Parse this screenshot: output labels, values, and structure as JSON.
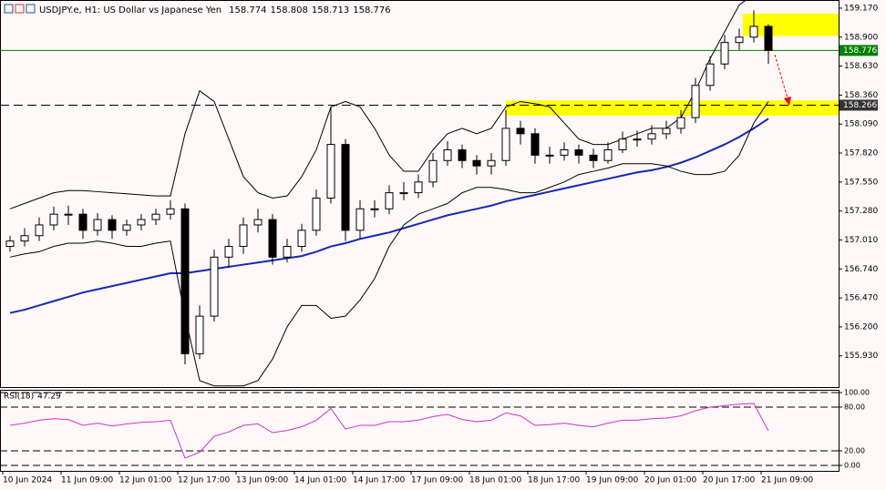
{
  "chart_data": [
    {
      "type": "candlestick",
      "title": "USDJPY.e, H1:  US Dollar vs Japanese Yen",
      "quote": [
        158.774,
        158.808,
        158.713,
        158.776
      ],
      "categories": [
        "10 Jun 2024",
        null,
        null,
        null,
        "11 Jun 09:00",
        null,
        null,
        null,
        "12 Jun 01:00",
        null,
        null,
        null,
        "12 Jun 17:00",
        null,
        null,
        null,
        "13 Jun 09:00",
        null,
        null,
        null,
        "14 Jun 01:00",
        null,
        null,
        null,
        "14 Jun 17:00",
        null,
        null,
        null,
        "17 Jun 09:00",
        null,
        null,
        null,
        "18 Jun 01:00",
        null,
        null,
        null,
        "18 Jun 17:00",
        null,
        null,
        null,
        "19 Jun 09:00",
        null,
        null,
        null,
        "20 Jun 01:00",
        null,
        null,
        null,
        "20 Jun 17:00",
        null,
        null,
        null,
        "21 Jun 09:00"
      ],
      "open": [
        156.95,
        157.0,
        157.05,
        157.15,
        157.25,
        157.25,
        157.1,
        157.2,
        157.1,
        157.15,
        157.2,
        157.25,
        157.3,
        155.95,
        156.3,
        156.85,
        156.95,
        157.15,
        157.2,
        156.85,
        156.95,
        157.1,
        157.4,
        157.9,
        157.1,
        157.3,
        157.3,
        157.45,
        157.45,
        157.55,
        157.75,
        157.85,
        157.75,
        157.7,
        157.75,
        158.05,
        158.0,
        157.8,
        157.8,
        157.85,
        157.8,
        157.75,
        157.85,
        157.95,
        157.95,
        158.0,
        158.05,
        158.15,
        158.45,
        158.65,
        158.85,
        158.9,
        159.0
      ],
      "high": [
        157.05,
        157.12,
        157.22,
        157.32,
        157.33,
        157.3,
        157.26,
        157.24,
        157.2,
        157.25,
        157.3,
        157.38,
        157.35,
        156.4,
        156.92,
        157.02,
        157.22,
        157.3,
        157.25,
        157.02,
        157.16,
        157.48,
        158.25,
        157.95,
        157.38,
        157.38,
        157.52,
        157.55,
        157.62,
        157.82,
        157.93,
        157.9,
        157.8,
        157.82,
        158.22,
        158.12,
        158.05,
        157.88,
        157.92,
        157.9,
        157.86,
        157.92,
        158.02,
        158.03,
        158.08,
        158.12,
        158.22,
        158.52,
        158.72,
        158.92,
        158.98,
        159.15,
        159.02
      ],
      "low": [
        156.9,
        156.95,
        157.0,
        157.1,
        157.15,
        157.02,
        157.05,
        157.02,
        157.05,
        157.1,
        157.15,
        157.2,
        155.85,
        155.9,
        156.25,
        156.75,
        156.88,
        157.08,
        156.78,
        156.8,
        156.9,
        157.05,
        157.35,
        157.0,
        157.02,
        157.22,
        157.25,
        157.38,
        157.4,
        157.5,
        157.7,
        157.68,
        157.62,
        157.62,
        157.7,
        157.9,
        157.72,
        157.72,
        157.75,
        157.72,
        157.68,
        157.72,
        157.82,
        157.88,
        157.9,
        157.95,
        158.0,
        158.1,
        158.4,
        158.6,
        158.78,
        158.85,
        158.65
      ],
      "close": [
        157.0,
        157.05,
        157.15,
        157.25,
        157.25,
        157.1,
        157.2,
        157.1,
        157.15,
        157.2,
        157.25,
        157.3,
        155.95,
        156.3,
        156.85,
        156.95,
        157.15,
        157.2,
        156.85,
        156.95,
        157.1,
        157.4,
        157.9,
        157.1,
        157.3,
        157.3,
        157.45,
        157.45,
        157.55,
        157.75,
        157.85,
        157.75,
        157.7,
        157.75,
        158.05,
        158.0,
        157.8,
        157.8,
        157.85,
        157.8,
        157.75,
        157.85,
        157.95,
        157.95,
        158.0,
        158.05,
        158.15,
        158.45,
        158.65,
        158.85,
        158.9,
        159.0,
        158.776
      ],
      "series": [
        {
          "color": "#1428b4",
          "values": [
            156.33,
            156.36,
            156.4,
            156.44,
            156.48,
            156.52,
            156.55,
            156.58,
            156.61,
            156.64,
            156.67,
            156.7,
            156.7,
            156.72,
            156.74,
            156.76,
            156.78,
            156.8,
            156.82,
            156.84,
            156.86,
            156.9,
            156.95,
            156.98,
            157.02,
            157.05,
            157.08,
            157.12,
            157.16,
            157.2,
            157.24,
            157.27,
            157.3,
            157.33,
            157.37,
            157.4,
            157.43,
            157.46,
            157.49,
            157.52,
            157.55,
            157.58,
            157.61,
            157.64,
            157.66,
            157.69,
            157.73,
            157.78,
            157.84,
            157.9,
            157.97,
            158.05,
            158.14
          ]
        },
        {
          "color": "#000000",
          "values": [
            157.3,
            157.35,
            157.4,
            157.45,
            157.47,
            157.47,
            157.46,
            157.45,
            157.44,
            157.43,
            157.42,
            157.42,
            158.0,
            158.4,
            158.3,
            157.95,
            157.6,
            157.45,
            157.4,
            157.42,
            157.6,
            157.85,
            158.25,
            158.3,
            158.25,
            158.05,
            157.8,
            157.65,
            157.65,
            157.85,
            158.0,
            158.05,
            158.0,
            158.05,
            158.25,
            158.3,
            158.28,
            158.25,
            158.1,
            157.95,
            157.9,
            157.9,
            157.95,
            158.0,
            158.05,
            158.05,
            158.15,
            158.4,
            158.7,
            158.95,
            159.2,
            159.3,
            159.3
          ]
        },
        {
          "color": "#000000",
          "values": [
            156.85,
            156.88,
            156.9,
            156.95,
            156.98,
            156.98,
            157.0,
            156.98,
            156.95,
            156.95,
            156.98,
            157.0,
            156.3,
            155.7,
            155.65,
            155.65,
            155.65,
            155.7,
            155.9,
            156.2,
            156.4,
            156.4,
            156.28,
            156.3,
            156.45,
            156.65,
            156.95,
            157.15,
            157.25,
            157.3,
            157.35,
            157.45,
            157.5,
            157.5,
            157.48,
            157.45,
            157.45,
            157.5,
            157.55,
            157.62,
            157.65,
            157.68,
            157.72,
            157.72,
            157.72,
            157.7,
            157.65,
            157.62,
            157.62,
            157.65,
            157.8,
            158.1,
            158.3
          ]
        }
      ],
      "zones": [
        [
          158.17,
          158.31
        ],
        [
          158.91,
          159.12
        ]
      ],
      "zone_color": "#ffff00",
      "hlines": [
        {
          "value": 158.776,
          "color": "#008000",
          "style": "solid"
        },
        {
          "value": 158.266,
          "color": "#000000",
          "style": "dashed"
        }
      ],
      "ylim": [
        155.639,
        159.246
      ],
      "yticks": [
        {
          "value": 159.17,
          "label": "159.170"
        },
        {
          "value": 158.9,
          "label": "158.900"
        },
        {
          "value": 158.63,
          "label": "158.630"
        },
        {
          "value": 158.36,
          "label": "158.360"
        },
        {
          "value": 158.09,
          "label": "158.090"
        },
        {
          "value": 157.82,
          "label": "157.820"
        },
        {
          "value": 157.55,
          "label": "157.550"
        },
        {
          "value": 157.28,
          "label": "157.280"
        },
        {
          "value": 157.01,
          "label": "157.010"
        },
        {
          "value": 156.74,
          "label": "156.740"
        },
        {
          "value": 156.47,
          "label": "156.470"
        },
        {
          "value": 156.2,
          "label": "156.200"
        },
        {
          "value": 155.93,
          "label": "155.930"
        }
      ]
    },
    {
      "type": "line",
      "title": "RSI(18)",
      "last": 47.29,
      "series": [
        {
          "color": "#cc33cc",
          "values": [
            55,
            58,
            62,
            64,
            63,
            55,
            58,
            54,
            57,
            59,
            60,
            62,
            10,
            18,
            40,
            46,
            55,
            57,
            45,
            48,
            53,
            62,
            78,
            50,
            55,
            55,
            60,
            60,
            62,
            67,
            70,
            63,
            60,
            62,
            72,
            68,
            55,
            56,
            58,
            55,
            53,
            58,
            62,
            62,
            64,
            65,
            68,
            75,
            80,
            82,
            84,
            85,
            47.29
          ]
        }
      ],
      "ylim": [
        -7.5,
        103.75
      ],
      "yticks": [
        {
          "value": 100,
          "label": "100.00"
        },
        {
          "value": 80,
          "label": "80.00"
        },
        {
          "value": 20,
          "label": "20.00"
        },
        {
          "value": 0,
          "label": "0.00"
        }
      ]
    }
  ]
}
